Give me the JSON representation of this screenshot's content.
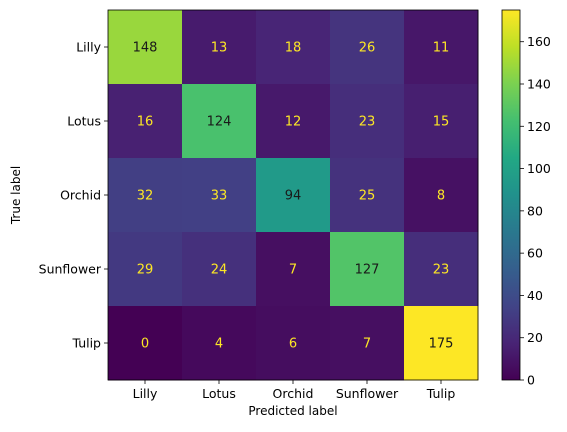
{
  "chart_data": {
    "type": "heatmap",
    "title": "",
    "xlabel": "Predicted label",
    "ylabel": "True label",
    "x_categories": [
      "Lilly",
      "Lotus",
      "Orchid",
      "Sunflower",
      "Tulip"
    ],
    "y_categories": [
      "Lilly",
      "Lotus",
      "Orchid",
      "Sunflower",
      "Tulip"
    ],
    "values": [
      [
        148,
        13,
        18,
        26,
        11
      ],
      [
        16,
        124,
        12,
        23,
        15
      ],
      [
        32,
        33,
        94,
        25,
        8
      ],
      [
        29,
        24,
        7,
        127,
        23
      ],
      [
        0,
        4,
        6,
        7,
        175
      ]
    ],
    "colormap": "viridis",
    "colorbar": {
      "range": [
        0,
        175
      ],
      "ticks": [
        0,
        20,
        40,
        60,
        80,
        100,
        120,
        140,
        160
      ]
    },
    "text_colors": {
      "on_dark": "#fde725",
      "on_light": "#1a1a1a"
    }
  }
}
